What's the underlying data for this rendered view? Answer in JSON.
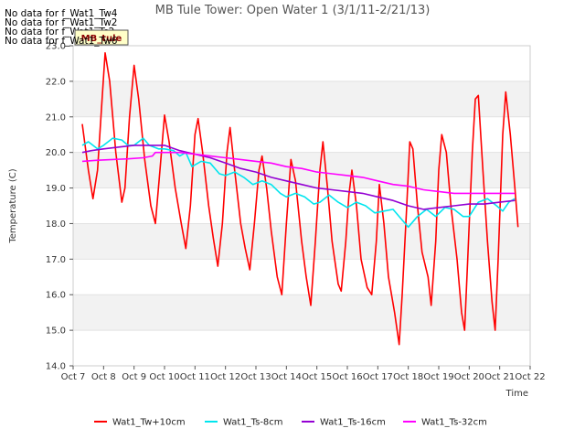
{
  "chart_data": {
    "type": "line",
    "title": "MB Tule Tower: Open Water 1 (3/1/11-2/21/13)",
    "xlabel": "Time",
    "ylabel": "Temperature (C)",
    "no_data_messages": [
      "No data for f_Wat1_Tw4",
      "No data for f_Wat1_Tw2",
      "No data for f_Wat1_Ts2",
      "No data for f_Wat1_Tw6"
    ],
    "badge_label": "MB_tule",
    "x_tick_labels": [
      "Oct 7",
      "Oct 8",
      "Oct 9",
      "Oct 10",
      "Oct 11",
      "Oct 12",
      "Oct 13",
      "Oct 14",
      "Oct 15",
      "Oct 16",
      "Oct 17",
      "Oct 18",
      "Oct 19",
      "Oct 20",
      "Oct 21",
      "Oct 22"
    ],
    "xlim": [
      0,
      15
    ],
    "ylim": [
      14.0,
      23.0
    ],
    "y_ticks": [
      "14.0",
      "15.0",
      "16.0",
      "17.0",
      "18.0",
      "19.0",
      "20.0",
      "21.0",
      "22.0",
      "23.0"
    ],
    "grid": "horizontal bands",
    "legend_position": "bottom",
    "series": [
      {
        "name": "Wat1_Tw+10cm",
        "color": "#ff0000",
        "points": [
          [
            0.3,
            20.8
          ],
          [
            0.5,
            19.5
          ],
          [
            0.65,
            18.7
          ],
          [
            0.8,
            19.5
          ],
          [
            0.95,
            21.5
          ],
          [
            1.05,
            22.8
          ],
          [
            1.2,
            22.0
          ],
          [
            1.4,
            20.0
          ],
          [
            1.6,
            18.6
          ],
          [
            1.7,
            19.0
          ],
          [
            1.85,
            21.0
          ],
          [
            2.0,
            22.45
          ],
          [
            2.15,
            21.5
          ],
          [
            2.35,
            19.8
          ],
          [
            2.55,
            18.5
          ],
          [
            2.7,
            18.0
          ],
          [
            2.85,
            19.5
          ],
          [
            3.0,
            21.05
          ],
          [
            3.15,
            20.3
          ],
          [
            3.35,
            19.0
          ],
          [
            3.55,
            18.0
          ],
          [
            3.7,
            17.3
          ],
          [
            3.85,
            18.5
          ],
          [
            4.0,
            20.5
          ],
          [
            4.1,
            20.95
          ],
          [
            4.25,
            20.0
          ],
          [
            4.45,
            18.5
          ],
          [
            4.6,
            17.6
          ],
          [
            4.75,
            16.8
          ],
          [
            4.9,
            18.0
          ],
          [
            5.05,
            20.0
          ],
          [
            5.15,
            20.7
          ],
          [
            5.3,
            19.5
          ],
          [
            5.5,
            18.0
          ],
          [
            5.65,
            17.3
          ],
          [
            5.8,
            16.7
          ],
          [
            5.95,
            18.0
          ],
          [
            6.1,
            19.5
          ],
          [
            6.2,
            19.9
          ],
          [
            6.35,
            19.0
          ],
          [
            6.5,
            17.8
          ],
          [
            6.7,
            16.5
          ],
          [
            6.85,
            16.0
          ],
          [
            7.0,
            18.0
          ],
          [
            7.15,
            19.8
          ],
          [
            7.3,
            19.2
          ],
          [
            7.5,
            17.5
          ],
          [
            7.65,
            16.5
          ],
          [
            7.8,
            15.7
          ],
          [
            7.95,
            17.5
          ],
          [
            8.1,
            19.5
          ],
          [
            8.2,
            20.3
          ],
          [
            8.35,
            19.0
          ],
          [
            8.5,
            17.5
          ],
          [
            8.7,
            16.3
          ],
          [
            8.8,
            16.1
          ],
          [
            8.95,
            17.5
          ],
          [
            9.05,
            18.8
          ],
          [
            9.15,
            19.5
          ],
          [
            9.3,
            18.5
          ],
          [
            9.45,
            17.0
          ],
          [
            9.65,
            16.2
          ],
          [
            9.8,
            16.0
          ],
          [
            9.95,
            17.5
          ],
          [
            10.05,
            19.1
          ],
          [
            10.2,
            18.0
          ],
          [
            10.35,
            16.5
          ],
          [
            10.55,
            15.5
          ],
          [
            10.7,
            14.6
          ],
          [
            10.8,
            16.0
          ],
          [
            10.95,
            18.5
          ],
          [
            11.05,
            20.3
          ],
          [
            11.15,
            20.1
          ],
          [
            11.3,
            18.5
          ],
          [
            11.45,
            17.2
          ],
          [
            11.65,
            16.5
          ],
          [
            11.75,
            15.7
          ],
          [
            11.9,
            17.5
          ],
          [
            12.0,
            19.5
          ],
          [
            12.1,
            20.5
          ],
          [
            12.25,
            20.0
          ],
          [
            12.4,
            18.5
          ],
          [
            12.6,
            17.0
          ],
          [
            12.75,
            15.5
          ],
          [
            12.85,
            15.0
          ],
          [
            12.95,
            17.0
          ],
          [
            13.1,
            20.0
          ],
          [
            13.2,
            21.5
          ],
          [
            13.3,
            21.6
          ],
          [
            13.45,
            19.5
          ],
          [
            13.6,
            17.5
          ],
          [
            13.75,
            15.8
          ],
          [
            13.85,
            15.0
          ],
          [
            13.95,
            17.0
          ],
          [
            14.1,
            20.5
          ],
          [
            14.2,
            21.7
          ],
          [
            14.35,
            20.5
          ],
          [
            14.5,
            19.0
          ],
          [
            14.6,
            17.9
          ]
        ]
      },
      {
        "name": "Wat1_Ts-8cm",
        "color": "#00e5ee",
        "points": [
          [
            0.3,
            20.2
          ],
          [
            0.5,
            20.3
          ],
          [
            0.8,
            20.1
          ],
          [
            1.0,
            20.2
          ],
          [
            1.3,
            20.4
          ],
          [
            1.6,
            20.35
          ],
          [
            1.8,
            20.2
          ],
          [
            2.0,
            20.2
          ],
          [
            2.3,
            20.4
          ],
          [
            2.5,
            20.2
          ],
          [
            2.8,
            20.1
          ],
          [
            3.0,
            20.1
          ],
          [
            3.3,
            20.05
          ],
          [
            3.5,
            19.9
          ],
          [
            3.7,
            20.0
          ],
          [
            3.9,
            19.6
          ],
          [
            4.2,
            19.75
          ],
          [
            4.5,
            19.7
          ],
          [
            4.8,
            19.4
          ],
          [
            5.0,
            19.35
          ],
          [
            5.3,
            19.45
          ],
          [
            5.6,
            19.3
          ],
          [
            5.9,
            19.1
          ],
          [
            6.2,
            19.2
          ],
          [
            6.5,
            19.1
          ],
          [
            6.8,
            18.85
          ],
          [
            7.0,
            18.75
          ],
          [
            7.3,
            18.85
          ],
          [
            7.6,
            18.75
          ],
          [
            7.9,
            18.55
          ],
          [
            8.1,
            18.6
          ],
          [
            8.4,
            18.8
          ],
          [
            8.7,
            18.6
          ],
          [
            9.0,
            18.45
          ],
          [
            9.3,
            18.6
          ],
          [
            9.6,
            18.5
          ],
          [
            9.9,
            18.3
          ],
          [
            10.2,
            18.35
          ],
          [
            10.5,
            18.4
          ],
          [
            10.8,
            18.1
          ],
          [
            11.0,
            17.9
          ],
          [
            11.3,
            18.2
          ],
          [
            11.6,
            18.4
          ],
          [
            11.9,
            18.2
          ],
          [
            12.2,
            18.45
          ],
          [
            12.5,
            18.4
          ],
          [
            12.8,
            18.2
          ],
          [
            13.0,
            18.2
          ],
          [
            13.3,
            18.6
          ],
          [
            13.6,
            18.7
          ],
          [
            13.9,
            18.5
          ],
          [
            14.1,
            18.35
          ],
          [
            14.3,
            18.6
          ],
          [
            14.5,
            18.7
          ]
        ]
      },
      {
        "name": "Wat1_Ts-16cm",
        "color": "#9400d3",
        "points": [
          [
            0.3,
            20.0
          ],
          [
            0.6,
            20.05
          ],
          [
            1.0,
            20.1
          ],
          [
            1.5,
            20.15
          ],
          [
            2.0,
            20.2
          ],
          [
            2.5,
            20.2
          ],
          [
            3.0,
            20.2
          ],
          [
            3.5,
            20.05
          ],
          [
            4.0,
            19.95
          ],
          [
            4.5,
            19.85
          ],
          [
            5.0,
            19.7
          ],
          [
            5.5,
            19.55
          ],
          [
            6.0,
            19.45
          ],
          [
            6.5,
            19.3
          ],
          [
            7.0,
            19.2
          ],
          [
            7.5,
            19.1
          ],
          [
            8.0,
            19.0
          ],
          [
            8.5,
            18.95
          ],
          [
            9.0,
            18.9
          ],
          [
            9.5,
            18.85
          ],
          [
            10.0,
            18.75
          ],
          [
            10.5,
            18.65
          ],
          [
            11.0,
            18.5
          ],
          [
            11.5,
            18.4
          ],
          [
            12.0,
            18.45
          ],
          [
            12.5,
            18.5
          ],
          [
            13.0,
            18.55
          ],
          [
            13.5,
            18.55
          ],
          [
            14.0,
            18.6
          ],
          [
            14.5,
            18.65
          ]
        ]
      },
      {
        "name": "Wat1_Ts-32cm",
        "color": "#ff00ff",
        "points": [
          [
            0.3,
            19.75
          ],
          [
            0.8,
            19.78
          ],
          [
            1.3,
            19.8
          ],
          [
            1.8,
            19.82
          ],
          [
            2.3,
            19.85
          ],
          [
            2.6,
            19.9
          ],
          [
            2.7,
            20.0
          ],
          [
            3.0,
            20.0
          ],
          [
            3.5,
            20.0
          ],
          [
            4.0,
            19.95
          ],
          [
            4.5,
            19.9
          ],
          [
            5.0,
            19.85
          ],
          [
            5.5,
            19.8
          ],
          [
            6.0,
            19.75
          ],
          [
            6.5,
            19.7
          ],
          [
            7.0,
            19.6
          ],
          [
            7.5,
            19.55
          ],
          [
            8.0,
            19.45
          ],
          [
            8.5,
            19.4
          ],
          [
            9.0,
            19.35
          ],
          [
            9.5,
            19.3
          ],
          [
            10.0,
            19.2
          ],
          [
            10.5,
            19.1
          ],
          [
            11.0,
            19.05
          ],
          [
            11.5,
            18.95
          ],
          [
            12.0,
            18.9
          ],
          [
            12.5,
            18.85
          ],
          [
            13.0,
            18.85
          ],
          [
            13.5,
            18.85
          ],
          [
            14.0,
            18.85
          ],
          [
            14.5,
            18.85
          ]
        ]
      }
    ]
  }
}
